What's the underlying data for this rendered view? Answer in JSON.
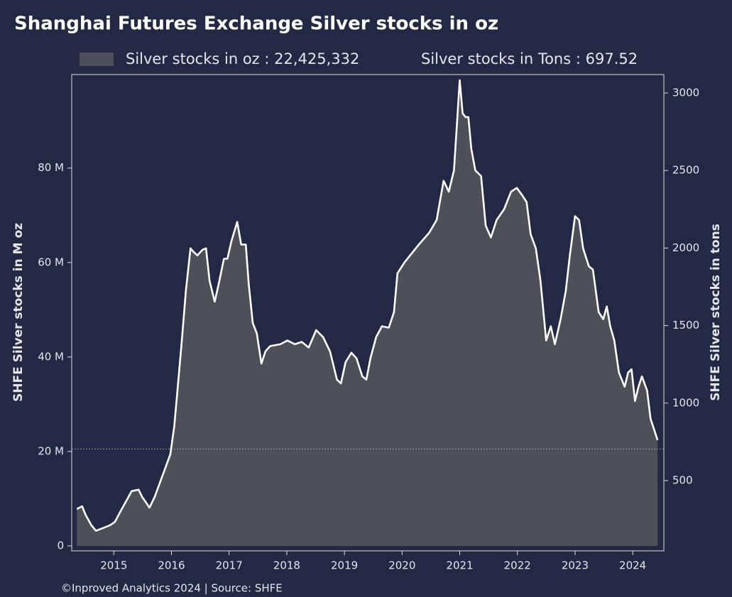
{
  "chart_data": {
    "type": "area",
    "title": "Shanghai Futures Exchange Silver stocks in oz",
    "legend_note": "Silver stocks in Tons : 697.52",
    "ylabel": "SHFE Silver stocks in M oz",
    "y2label": "SHFE Silver stocks in tons",
    "footer": "©Inproved Analytics 2024 | Source: SHFE",
    "x": [
      2014.36,
      2014.45,
      2014.51,
      2014.61,
      2014.69,
      2014.82,
      2014.94,
      2015.02,
      2015.12,
      2015.22,
      2015.31,
      2015.43,
      2015.49,
      2015.62,
      2015.71,
      2015.8,
      2015.89,
      2015.98,
      2016.05,
      2016.11,
      2016.18,
      2016.25,
      2016.33,
      2016.38,
      2016.45,
      2016.54,
      2016.6,
      2016.66,
      2016.75,
      2016.82,
      2016.91,
      2016.97,
      2017.04,
      2017.14,
      2017.21,
      2017.29,
      2017.34,
      2017.41,
      2017.48,
      2017.56,
      2017.63,
      2017.71,
      2017.89,
      2018.01,
      2018.14,
      2018.26,
      2018.38,
      2018.51,
      2018.63,
      2018.75,
      2018.87,
      2018.94,
      2019.02,
      2019.12,
      2019.21,
      2019.31,
      2019.38,
      2019.45,
      2019.55,
      2019.65,
      2019.77,
      2019.86,
      2019.92,
      2020.04,
      2020.29,
      2020.47,
      2020.6,
      2020.72,
      2020.81,
      2020.9,
      2021.0,
      2021.05,
      2021.1,
      2021.15,
      2021.2,
      2021.27,
      2021.37,
      2021.45,
      2021.54,
      2021.64,
      2021.77,
      2021.89,
      2021.99,
      2022.08,
      2022.16,
      2022.23,
      2022.32,
      2022.4,
      2022.5,
      2022.58,
      2022.65,
      2022.75,
      2022.84,
      2022.91,
      2023.0,
      2023.07,
      2023.14,
      2023.24,
      2023.31,
      2023.41,
      2023.49,
      2023.55,
      2023.61,
      2023.68,
      2023.76,
      2023.86,
      2023.92,
      2023.98,
      2024.04,
      2024.1,
      2024.16,
      2024.25,
      2024.31,
      2024.37,
      2024.43
    ],
    "series": [
      {
        "name": "Silver stocks in oz : 22,425,332",
        "color": "#4e5059",
        "line_color": "#ffffff",
        "values": [
          7.8,
          8.4,
          6.6,
          4.4,
          3.2,
          3.8,
          4.4,
          5.1,
          7.4,
          9.6,
          11.6,
          11.9,
          10.4,
          8.1,
          10.4,
          13.4,
          16.4,
          19.4,
          25.4,
          33.7,
          43.5,
          54.0,
          63.0,
          62.3,
          61.5,
          62.7,
          63.0,
          56.2,
          51.7,
          55.5,
          60.8,
          60.8,
          64.5,
          68.6,
          63.8,
          63.8,
          55.5,
          47.2,
          45.0,
          38.6,
          41.2,
          42.3,
          42.7,
          43.5,
          42.7,
          43.2,
          42.0,
          45.7,
          44.2,
          41.2,
          35.2,
          34.4,
          38.9,
          40.9,
          39.7,
          35.9,
          35.2,
          39.7,
          44.2,
          46.5,
          46.2,
          49.5,
          57.7,
          60.0,
          63.8,
          66.3,
          69.0,
          77.3,
          75.0,
          79.5,
          98.6,
          91.6,
          90.8,
          90.8,
          84.1,
          79.5,
          78.3,
          67.8,
          65.3,
          69.0,
          71.3,
          75.0,
          75.8,
          74.3,
          72.8,
          66.0,
          63.0,
          56.2,
          43.5,
          46.5,
          42.7,
          48.0,
          54.0,
          61.5,
          69.8,
          69.0,
          63.0,
          59.2,
          58.5,
          49.5,
          48.0,
          50.7,
          46.5,
          43.5,
          36.7,
          33.7,
          36.7,
          37.4,
          30.7,
          33.7,
          35.9,
          32.9,
          26.9,
          24.7,
          22.4
        ]
      }
    ],
    "reference_line": 20.5,
    "xlim": [
      2014.27,
      2024.54
    ],
    "xticks": [
      2015,
      2016,
      2017,
      2018,
      2019,
      2020,
      2021,
      2022,
      2023,
      2024
    ],
    "ylim": [
      -1.05,
      99.8
    ],
    "yticks": [
      0,
      {
        "value": 20,
        "label": "20 M"
      },
      {
        "value": 40,
        "label": "40 M"
      },
      {
        "value": 60,
        "label": "60 M"
      },
      {
        "value": 80,
        "label": "80 M"
      }
    ],
    "y2lim": [
      47,
      3119
    ],
    "y2ticks": [
      500,
      1000,
      1500,
      2000,
      2500,
      3000
    ]
  }
}
